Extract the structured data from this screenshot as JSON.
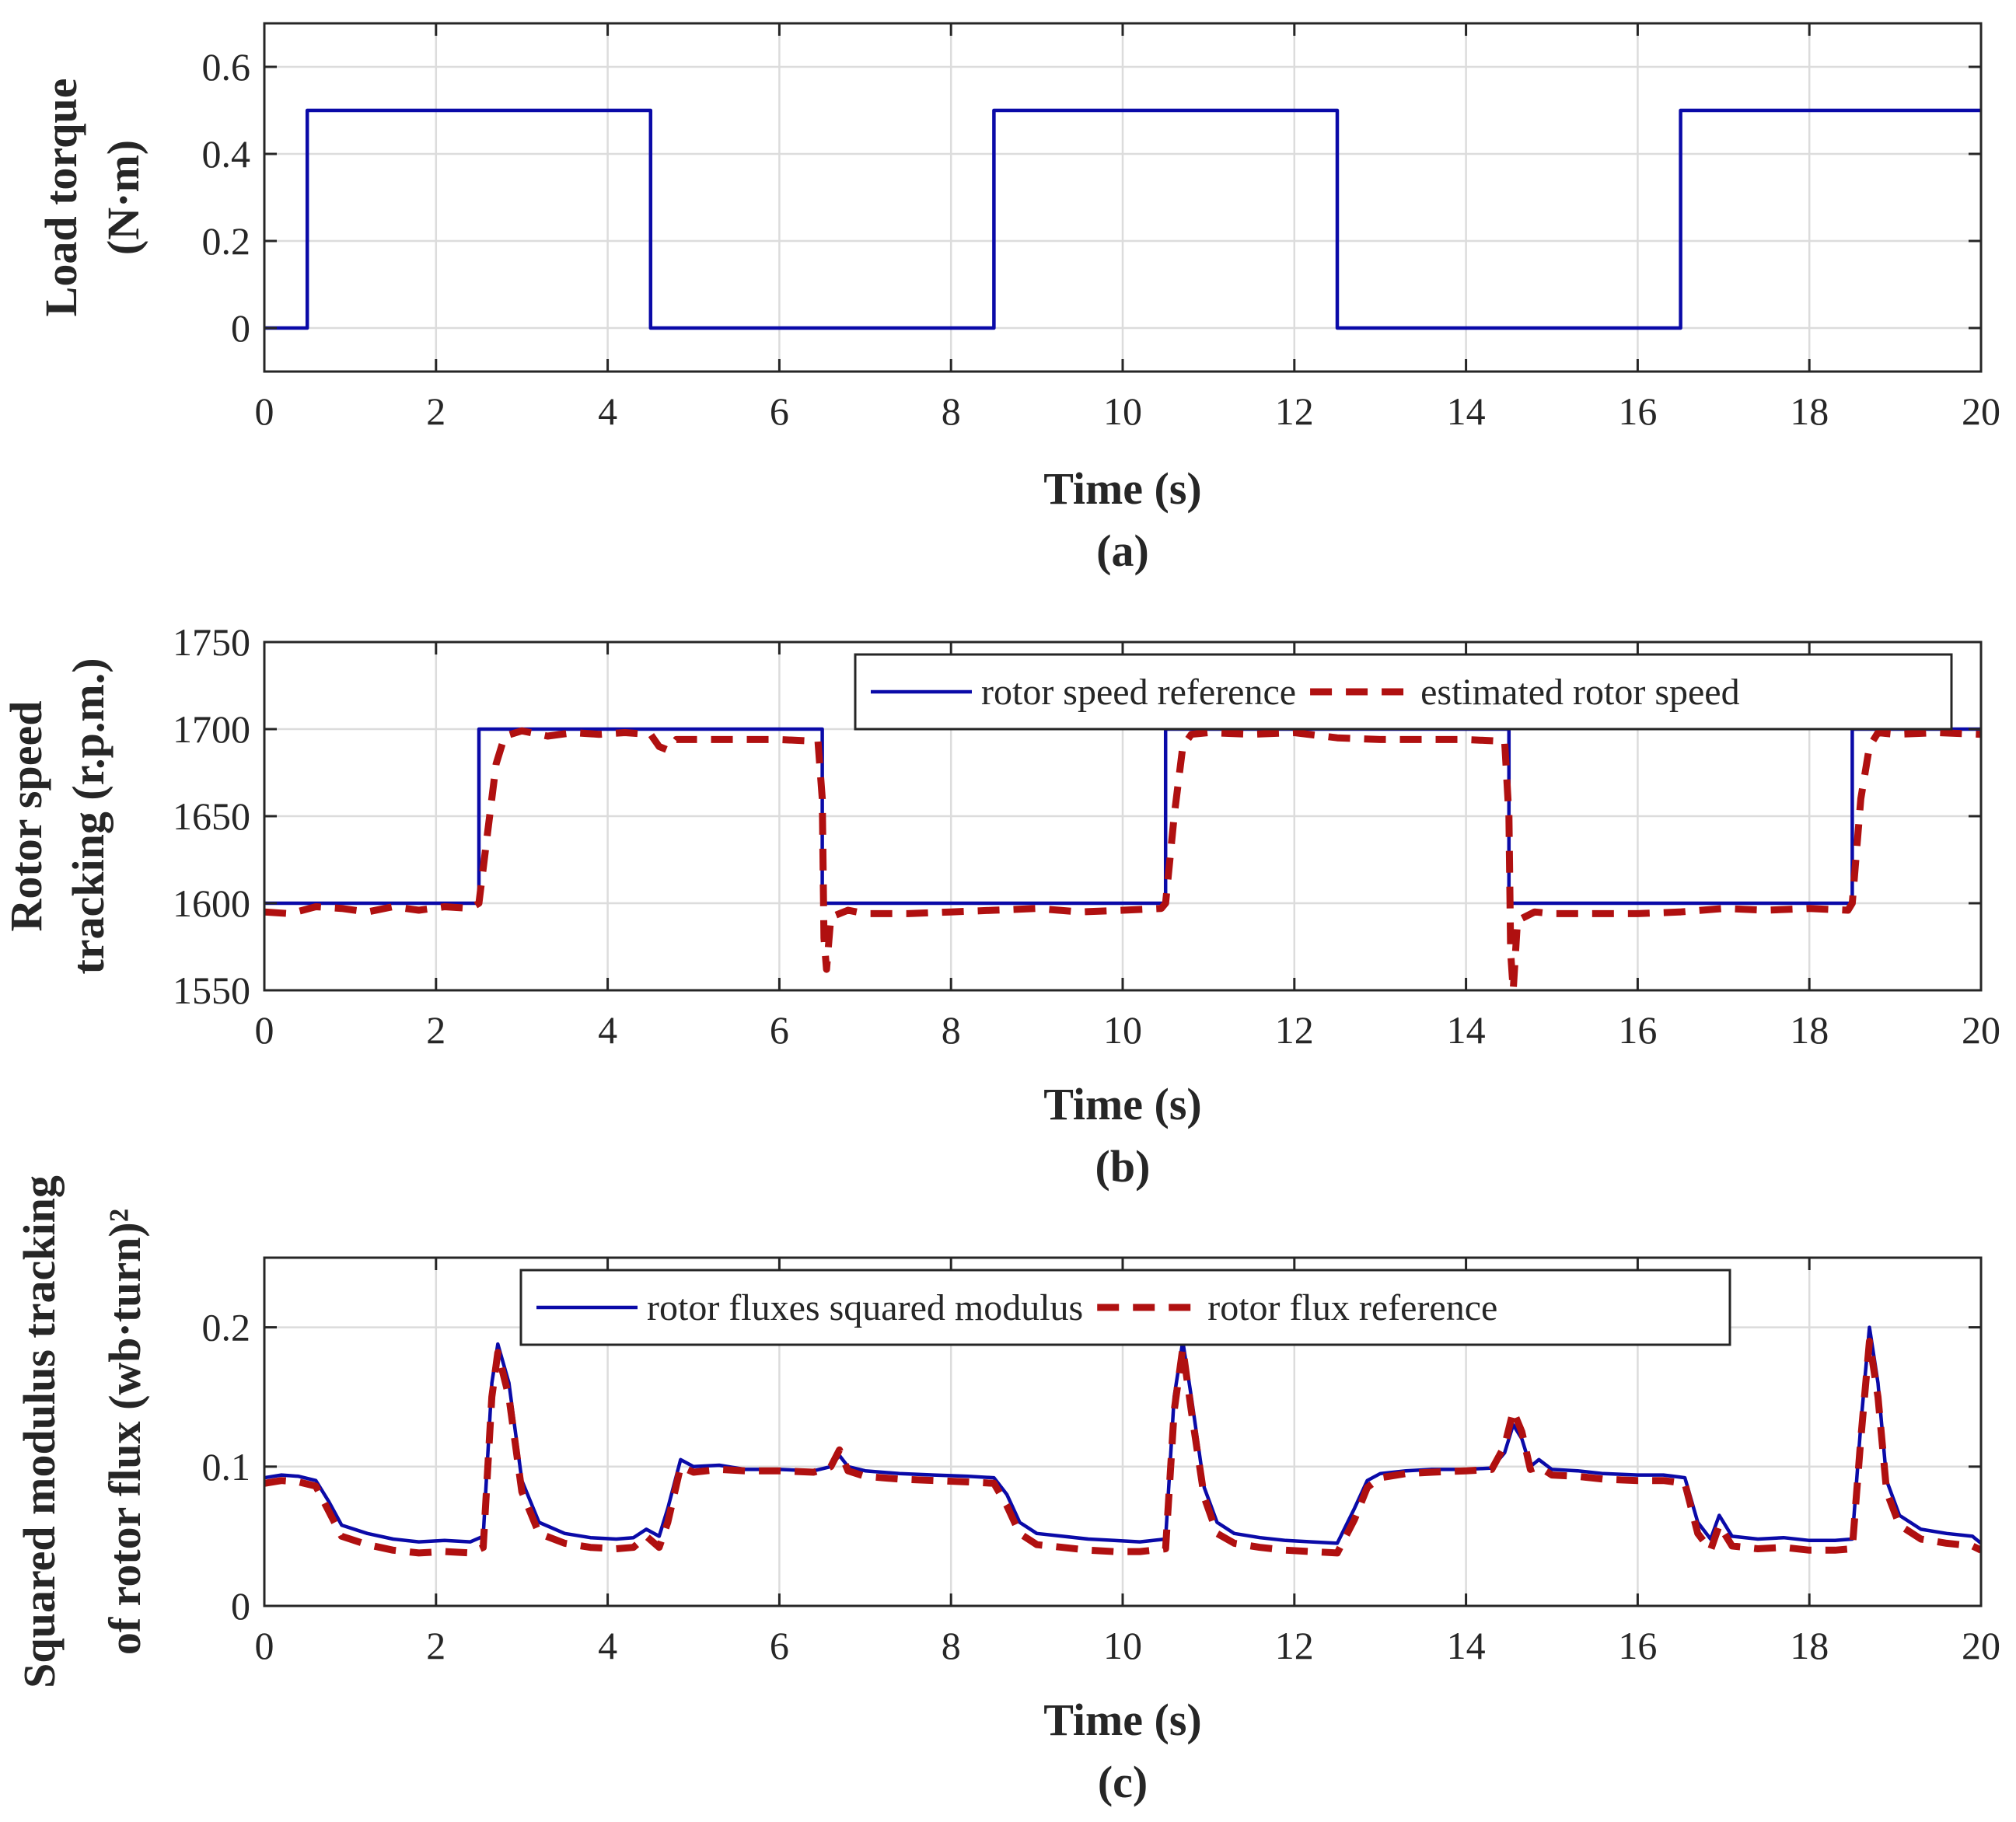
{
  "colors": {
    "series_blue": "#0a0aa8",
    "series_red": "#b01010",
    "axis": "#262626",
    "grid": "#dcdcdc"
  },
  "chart_data": [
    {
      "id": "a",
      "type": "line",
      "panel_label": "(a)",
      "title": "",
      "xlabel": "Time (s)",
      "ylabel_lines": [
        "Load torque",
        "(N·m)"
      ],
      "xlim": [
        0,
        20
      ],
      "ylim": [
        -0.1,
        0.7
      ],
      "xticks": [
        0,
        2,
        4,
        6,
        8,
        10,
        12,
        14,
        16,
        18,
        20
      ],
      "yticks": [
        0,
        0.2,
        0.4,
        0.6
      ],
      "ytick_labels": [
        "0",
        "0.2",
        "0.4",
        "0.6"
      ],
      "grid": true,
      "legend": null,
      "series": [
        {
          "name": "load torque",
          "color": "#0a0aa8",
          "style": "solid",
          "x": [
            0,
            0.5,
            0.5,
            4.5,
            4.5,
            8.5,
            8.5,
            12.5,
            12.5,
            16.5,
            16.5,
            20
          ],
          "y": [
            0,
            0,
            0.5,
            0.5,
            0,
            0,
            0.5,
            0.5,
            0,
            0,
            0.5,
            0.5
          ]
        }
      ]
    },
    {
      "id": "b",
      "type": "line",
      "panel_label": "(b)",
      "title": "",
      "xlabel": "Time (s)",
      "ylabel_lines": [
        "Rotor speed",
        "tracking (r.p.m.)"
      ],
      "xlim": [
        0,
        20
      ],
      "ylim": [
        1550,
        1750
      ],
      "xticks": [
        0,
        2,
        4,
        6,
        8,
        10,
        12,
        14,
        16,
        18,
        20
      ],
      "yticks": [
        1550,
        1600,
        1650,
        1700,
        1750
      ],
      "ytick_labels": [
        "1550",
        "1600",
        "1650",
        "1700",
        "1750"
      ],
      "grid": true,
      "legend": {
        "placement": "top-right",
        "entries": [
          "rotor speed reference",
          "estimated rotor speed"
        ]
      },
      "series": [
        {
          "name": "rotor speed reference",
          "color": "#0a0aa8",
          "style": "solid",
          "x": [
            0,
            2.5,
            2.5,
            6.5,
            6.5,
            10.5,
            10.5,
            14.5,
            14.5,
            18.5,
            18.5,
            20
          ],
          "y": [
            1600,
            1600,
            1700,
            1700,
            1600,
            1600,
            1700,
            1700,
            1600,
            1600,
            1700,
            1700
          ]
        },
        {
          "name": "estimated rotor speed",
          "color": "#b01010",
          "style": "dashed",
          "x": [
            0,
            0.3,
            0.6,
            0.9,
            1.2,
            1.5,
            1.8,
            2.1,
            2.4,
            2.5,
            2.6,
            2.7,
            2.8,
            3.0,
            3.3,
            3.6,
            3.9,
            4.2,
            4.5,
            4.6,
            4.7,
            4.8,
            5.0,
            5.5,
            6.0,
            6.45,
            6.5,
            6.52,
            6.55,
            6.6,
            6.8,
            7.0,
            7.5,
            8.0,
            8.5,
            9.0,
            9.5,
            10.0,
            10.45,
            10.5,
            10.6,
            10.7,
            10.8,
            11.0,
            11.5,
            12.0,
            12.5,
            13.0,
            13.5,
            14.0,
            14.45,
            14.5,
            14.52,
            14.55,
            14.6,
            14.8,
            15.0,
            15.5,
            16.0,
            16.5,
            17.0,
            17.5,
            18.0,
            18.45,
            18.5,
            18.6,
            18.7,
            18.8,
            19.0,
            19.5,
            20.0
          ],
          "y": [
            1595,
            1594,
            1598,
            1597,
            1595,
            1598,
            1596,
            1598,
            1597,
            1600,
            1640,
            1680,
            1696,
            1699,
            1696,
            1698,
            1697,
            1698,
            1697,
            1690,
            1688,
            1694,
            1694,
            1694,
            1694,
            1693,
            1660,
            1580,
            1562,
            1592,
            1596,
            1594,
            1594,
            1595,
            1596,
            1597,
            1595,
            1596,
            1597,
            1600,
            1650,
            1690,
            1697,
            1698,
            1697,
            1698,
            1695,
            1694,
            1694,
            1694,
            1693,
            1650,
            1572,
            1550,
            1590,
            1595,
            1594,
            1594,
            1594,
            1595,
            1597,
            1596,
            1597,
            1596,
            1600,
            1660,
            1690,
            1698,
            1697,
            1698,
            1697
          ]
        }
      ]
    },
    {
      "id": "c",
      "type": "line",
      "panel_label": "(c)",
      "title": "",
      "xlabel": "Time (s)",
      "ylabel_lines": [
        "Squared modulus tracking",
        "of rotor flux (wb·turn)²"
      ],
      "xlim": [
        0,
        20
      ],
      "ylim": [
        0,
        0.25
      ],
      "xticks": [
        0,
        2,
        4,
        6,
        8,
        10,
        12,
        14,
        16,
        18,
        20
      ],
      "yticks": [
        0,
        0.1,
        0.2
      ],
      "ytick_labels": [
        "0",
        "0.1",
        "0.2"
      ],
      "grid": true,
      "legend": {
        "placement": "top-center",
        "entries": [
          "rotor fluxes squared modulus",
          "rotor flux reference"
        ]
      },
      "series": [
        {
          "name": "rotor fluxes squared modulus",
          "color": "#0a0aa8",
          "style": "solid",
          "x": [
            0,
            0.2,
            0.4,
            0.6,
            0.75,
            0.9,
            1.2,
            1.5,
            1.8,
            2.1,
            2.4,
            2.55,
            2.65,
            2.72,
            2.85,
            3.0,
            3.2,
            3.5,
            3.8,
            4.1,
            4.3,
            4.45,
            4.6,
            4.7,
            4.85,
            5.0,
            5.3,
            5.6,
            6.0,
            6.4,
            6.6,
            6.7,
            6.8,
            7.0,
            7.4,
            7.8,
            8.2,
            8.5,
            8.65,
            8.8,
            9.0,
            9.3,
            9.6,
            9.9,
            10.2,
            10.5,
            10.6,
            10.7,
            10.8,
            10.95,
            11.1,
            11.3,
            11.6,
            11.9,
            12.2,
            12.5,
            12.7,
            12.85,
            13.0,
            13.3,
            13.6,
            14.0,
            14.3,
            14.45,
            14.55,
            14.65,
            14.75,
            14.85,
            15.0,
            15.3,
            15.6,
            16.0,
            16.3,
            16.55,
            16.7,
            16.85,
            16.95,
            17.1,
            17.4,
            17.7,
            18.0,
            18.3,
            18.5,
            18.6,
            18.7,
            18.8,
            18.9,
            19.05,
            19.3,
            19.6,
            19.9,
            20.0
          ],
          "y": [
            0.092,
            0.094,
            0.093,
            0.09,
            0.075,
            0.058,
            0.052,
            0.048,
            0.046,
            0.047,
            0.046,
            0.05,
            0.16,
            0.188,
            0.16,
            0.09,
            0.06,
            0.052,
            0.049,
            0.048,
            0.049,
            0.055,
            0.05,
            0.07,
            0.105,
            0.1,
            0.101,
            0.098,
            0.098,
            0.097,
            0.1,
            0.108,
            0.1,
            0.097,
            0.095,
            0.094,
            0.093,
            0.092,
            0.08,
            0.06,
            0.052,
            0.05,
            0.048,
            0.047,
            0.046,
            0.048,
            0.15,
            0.19,
            0.15,
            0.085,
            0.06,
            0.052,
            0.049,
            0.047,
            0.046,
            0.045,
            0.07,
            0.09,
            0.095,
            0.097,
            0.098,
            0.098,
            0.099,
            0.11,
            0.13,
            0.12,
            0.1,
            0.105,
            0.098,
            0.097,
            0.095,
            0.094,
            0.094,
            0.092,
            0.06,
            0.048,
            0.065,
            0.05,
            0.048,
            0.049,
            0.047,
            0.047,
            0.048,
            0.13,
            0.2,
            0.16,
            0.09,
            0.065,
            0.055,
            0.052,
            0.05,
            0.045
          ]
        },
        {
          "name": "rotor flux reference",
          "color": "#b01010",
          "style": "dashed",
          "x": [
            0,
            0.2,
            0.4,
            0.6,
            0.75,
            0.9,
            1.2,
            1.5,
            1.8,
            2.1,
            2.4,
            2.55,
            2.65,
            2.72,
            2.85,
            3.0,
            3.2,
            3.5,
            3.8,
            4.1,
            4.3,
            4.45,
            4.6,
            4.7,
            4.85,
            5.0,
            5.3,
            5.6,
            6.0,
            6.4,
            6.6,
            6.7,
            6.8,
            7.0,
            7.4,
            7.8,
            8.2,
            8.5,
            8.65,
            8.8,
            9.0,
            9.3,
            9.6,
            9.9,
            10.2,
            10.5,
            10.6,
            10.7,
            10.8,
            10.95,
            11.1,
            11.3,
            11.6,
            11.9,
            12.2,
            12.5,
            12.7,
            12.85,
            13.0,
            13.3,
            13.6,
            14.0,
            14.3,
            14.45,
            14.55,
            14.65,
            14.75,
            14.85,
            15.0,
            15.3,
            15.6,
            16.0,
            16.3,
            16.55,
            16.7,
            16.85,
            16.95,
            17.1,
            17.4,
            17.7,
            18.0,
            18.3,
            18.5,
            18.6,
            18.7,
            18.8,
            18.9,
            19.05,
            19.3,
            19.6,
            19.9,
            20.0
          ],
          "y": [
            0.088,
            0.09,
            0.089,
            0.086,
            0.068,
            0.05,
            0.044,
            0.04,
            0.038,
            0.039,
            0.038,
            0.042,
            0.15,
            0.182,
            0.15,
            0.082,
            0.052,
            0.045,
            0.042,
            0.041,
            0.042,
            0.05,
            0.042,
            0.06,
            0.1,
            0.096,
            0.098,
            0.097,
            0.097,
            0.096,
            0.1,
            0.112,
            0.097,
            0.093,
            0.091,
            0.09,
            0.089,
            0.088,
            0.072,
            0.052,
            0.044,
            0.042,
            0.04,
            0.039,
            0.039,
            0.041,
            0.14,
            0.185,
            0.14,
            0.078,
            0.052,
            0.045,
            0.042,
            0.04,
            0.039,
            0.038,
            0.062,
            0.085,
            0.092,
            0.095,
            0.096,
            0.097,
            0.098,
            0.115,
            0.14,
            0.125,
            0.098,
            0.1,
            0.094,
            0.093,
            0.091,
            0.09,
            0.09,
            0.088,
            0.052,
            0.04,
            0.058,
            0.043,
            0.041,
            0.042,
            0.04,
            0.04,
            0.041,
            0.12,
            0.19,
            0.15,
            0.082,
            0.058,
            0.048,
            0.045,
            0.043,
            0.04
          ]
        }
      ]
    }
  ]
}
